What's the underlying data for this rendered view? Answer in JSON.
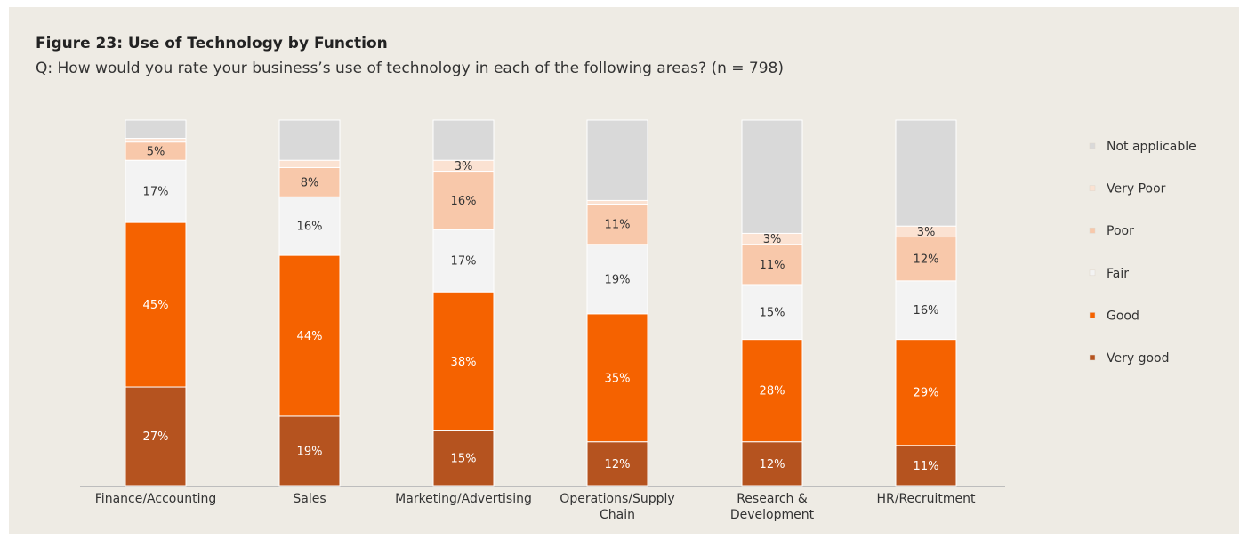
{
  "chart_data": {
    "type": "stacked-bar",
    "title": "Figure 23: Use of Technology by Function",
    "subtitle": "Q: How would you rate your business’s use of technology in each of the following areas? (n = 798)",
    "categories": [
      "Finance/Accounting",
      "Sales",
      "Marketing/Advertising",
      "Operations/Supply Chain",
      "Research & Development",
      "HR/Recruitment"
    ],
    "ylim": [
      0,
      100
    ],
    "series": [
      {
        "name": "Very good",
        "color": "#b5531f",
        "values": [
          27,
          19,
          15,
          12,
          12,
          11
        ],
        "value_labels": [
          "27%",
          "19%",
          "15%",
          "12%",
          "12%",
          "11%"
        ]
      },
      {
        "name": "Good",
        "color": "#f56200",
        "values": [
          45,
          44,
          38,
          35,
          28,
          29
        ],
        "value_labels": [
          "45%",
          "44%",
          "38%",
          "35%",
          "28%",
          "29%"
        ]
      },
      {
        "name": "Fair",
        "color": "#f3f3f3",
        "values": [
          17,
          16,
          17,
          19,
          15,
          16
        ],
        "value_labels": [
          "17%",
          "16%",
          "17%",
          "19%",
          "15%",
          "16%"
        ]
      },
      {
        "name": "Poor",
        "color": "#f8c8aa",
        "values": [
          5,
          8,
          16,
          11,
          11,
          12
        ],
        "value_labels": [
          "5%",
          "8%",
          "16%",
          "11%",
          "11%",
          "12%"
        ]
      },
      {
        "name": "Very Poor",
        "color": "#fbe2d2",
        "values": [
          1,
          2,
          3,
          1,
          3,
          3
        ],
        "value_labels": [
          null,
          null,
          "3%",
          null,
          "3%",
          "3%"
        ]
      },
      {
        "name": "Not applicable",
        "color": "#d9d9d9",
        "values": [
          5,
          11,
          11,
          22,
          31,
          29
        ],
        "value_labels": [
          null,
          null,
          null,
          null,
          null,
          null
        ]
      }
    ]
  }
}
